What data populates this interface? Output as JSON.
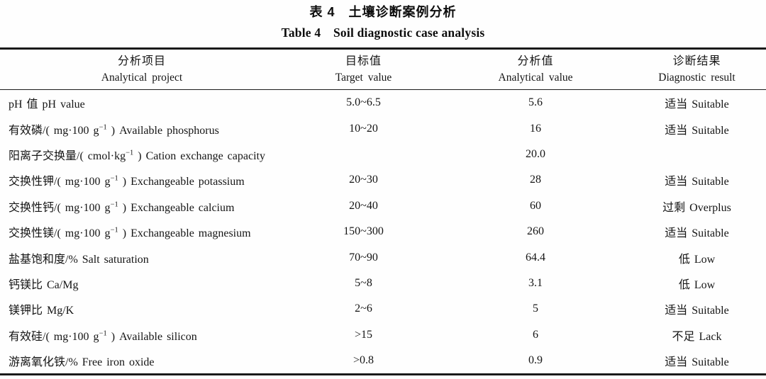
{
  "page": {
    "title_zh": "表 4　土壤诊断案例分析",
    "title_en": "Table 4　Soil diagnostic case analysis"
  },
  "table": {
    "columns": [
      {
        "zh": "分析项目",
        "en": "Analytical project"
      },
      {
        "zh": "目标值",
        "en": "Target value"
      },
      {
        "zh": "分析值",
        "en": "Analytical value"
      },
      {
        "zh": "诊断结果",
        "en": "Diagnostic result"
      }
    ],
    "rows": [
      {
        "project": "pH 值 pH value",
        "unit_sup": "",
        "project_tail": "",
        "target": "5.0~6.5",
        "analytical": "5.6",
        "result": "适当 Suitable"
      },
      {
        "project": "有效磷/( mg·100 g",
        "unit_sup": "−1",
        "project_tail": " ) Available phosphorus",
        "target": "10~20",
        "analytical": "16",
        "result": "适当 Suitable"
      },
      {
        "project": "阳离子交换量/( cmol·kg",
        "unit_sup": "−1",
        "project_tail": " ) Cation exchange capacity",
        "target": "",
        "analytical": "20.0",
        "result": ""
      },
      {
        "project": "交换性钾/( mg·100 g",
        "unit_sup": "−1",
        "project_tail": " ) Exchangeable potassium",
        "target": "20~30",
        "analytical": "28",
        "result": "适当 Suitable"
      },
      {
        "project": "交换性钙/( mg·100 g",
        "unit_sup": "−1",
        "project_tail": " ) Exchangeable calcium",
        "target": "20~40",
        "analytical": "60",
        "result": "过剩 Overplus"
      },
      {
        "project": "交换性镁/( mg·100 g",
        "unit_sup": "−1",
        "project_tail": " ) Exchangeable magnesium",
        "target": "150~300",
        "analytical": "260",
        "result": "适当 Suitable"
      },
      {
        "project": "盐基饱和度/% Salt saturation",
        "unit_sup": "",
        "project_tail": "",
        "target": "70~90",
        "analytical": "64.4",
        "result": "低 Low"
      },
      {
        "project": "钙镁比 Ca/Mg",
        "unit_sup": "",
        "project_tail": "",
        "target": "5~8",
        "analytical": "3.1",
        "result": "低 Low"
      },
      {
        "project": "镁钾比 Mg/K",
        "unit_sup": "",
        "project_tail": "",
        "target": "2~6",
        "analytical": "5",
        "result": "适当 Suitable"
      },
      {
        "project": "有效硅/( mg·100 g",
        "unit_sup": "−1",
        "project_tail": " ) Available silicon",
        "target": ">15",
        "analytical": "6",
        "result": "不足 Lack"
      },
      {
        "project": "游离氧化铁/% Free iron oxide",
        "unit_sup": "",
        "project_tail": "",
        "target": ">0.8",
        "analytical": "0.9",
        "result": "适当 Suitable"
      }
    ]
  }
}
